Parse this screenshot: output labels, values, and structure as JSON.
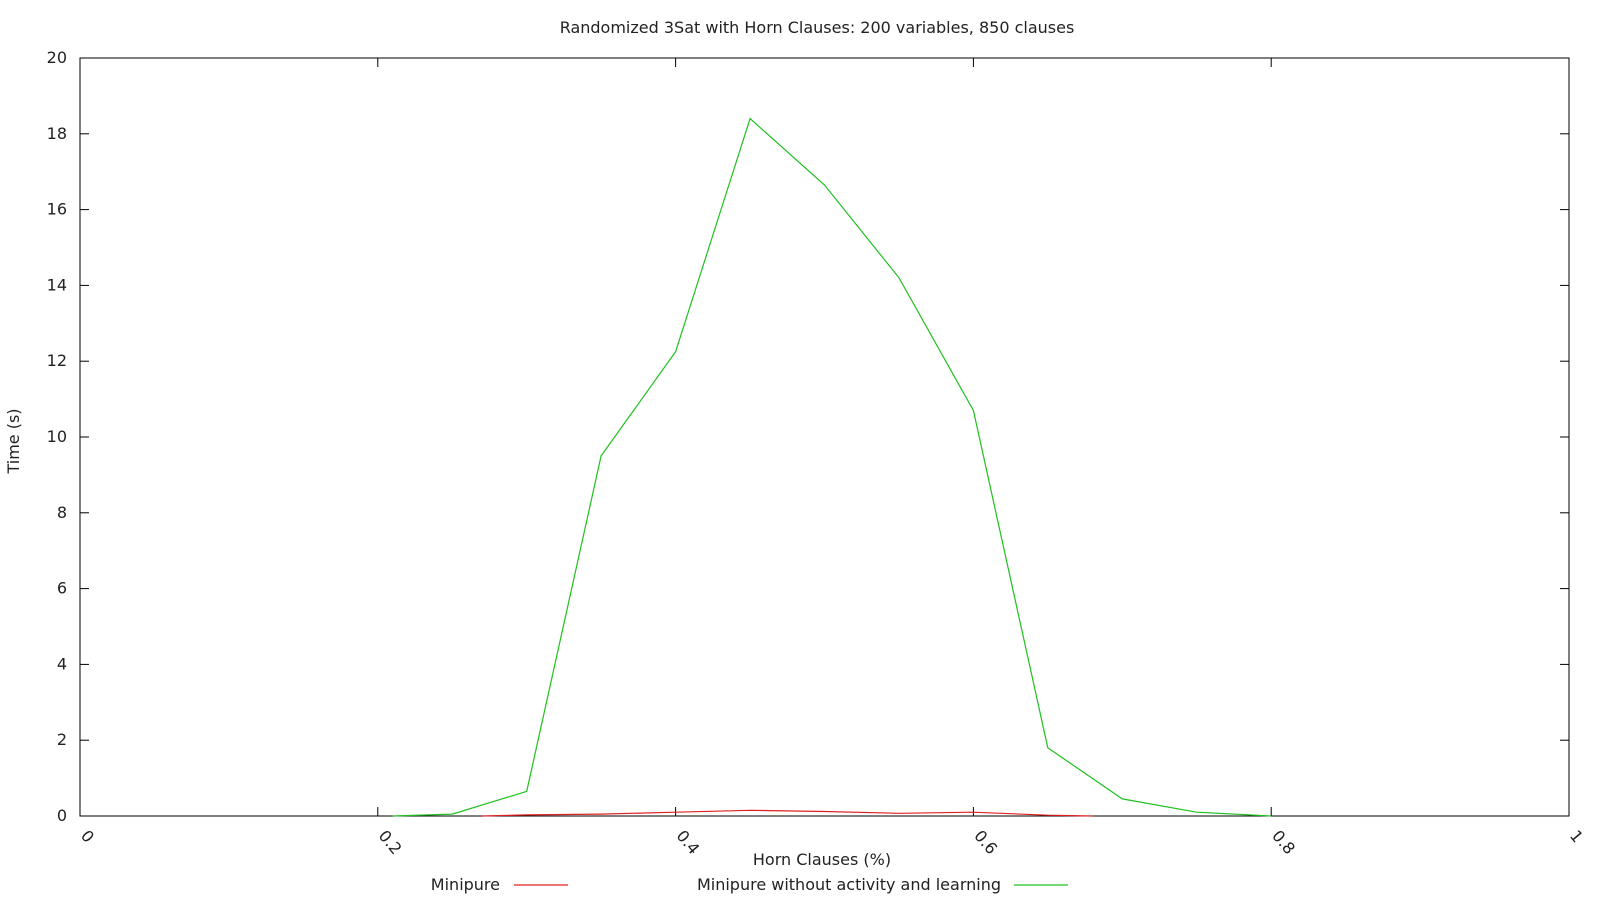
{
  "chart_data": {
    "type": "line",
    "title": "Randomized 3Sat with Horn Clauses: 200 variables, 850 clauses",
    "xlabel": "Horn Clauses (%)",
    "ylabel": "Time (s)",
    "xlim": [
      0,
      1
    ],
    "ylim": [
      0,
      20
    ],
    "xticks": [
      "0",
      "0.2",
      "0.4",
      "0.6",
      "0.8",
      "1"
    ],
    "yticks": [
      "0",
      "2",
      "4",
      "6",
      "8",
      "10",
      "12",
      "14",
      "16",
      "18",
      "20"
    ],
    "grid": false,
    "legend_position": "bottom",
    "series": [
      {
        "name": "Minipure",
        "color": "#e02020",
        "x": [
          0.27,
          0.3,
          0.35,
          0.4,
          0.45,
          0.5,
          0.55,
          0.6,
          0.65,
          0.68
        ],
        "y": [
          0.0,
          0.03,
          0.05,
          0.1,
          0.15,
          0.12,
          0.07,
          0.1,
          0.02,
          0.0
        ]
      },
      {
        "name": "Minipure without activity and learning",
        "color": "#20c020",
        "x": [
          0.21,
          0.25,
          0.3,
          0.35,
          0.4,
          0.45,
          0.5,
          0.55,
          0.6,
          0.65,
          0.7,
          0.75,
          0.8
        ],
        "y": [
          0.0,
          0.05,
          0.65,
          9.5,
          12.25,
          18.4,
          16.65,
          14.2,
          10.7,
          1.8,
          0.45,
          0.1,
          0.0
        ]
      }
    ]
  }
}
